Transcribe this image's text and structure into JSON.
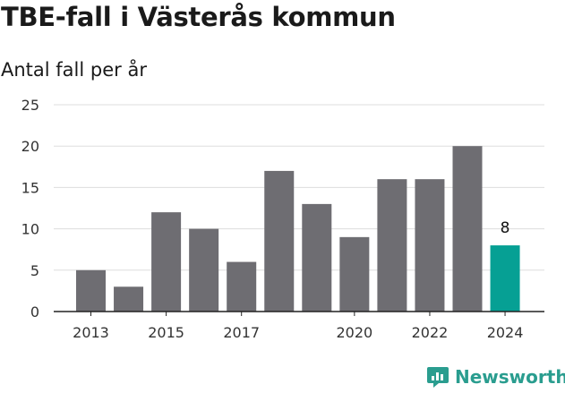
{
  "colors": {
    "bar": "#6e6d72",
    "highlight": "#06a094",
    "grid": "#dddddd",
    "axis": "#222222",
    "brand": "#2a9d8f"
  },
  "brand": {
    "name": "Newsworthy",
    "icon": "newsworthy-logo-icon"
  },
  "chart_data": {
    "type": "bar",
    "title": "TBE-fall i Västerås kommun",
    "subtitle": "Antal fall per år",
    "categories": [
      2013,
      2014,
      2015,
      2016,
      2017,
      2018,
      2019,
      2020,
      2021,
      2022,
      2023,
      2024
    ],
    "values": [
      5,
      3,
      12,
      10,
      6,
      17,
      13,
      9,
      16,
      16,
      20,
      8
    ],
    "x_tick_labels": [
      "2013",
      "2015",
      "2017",
      "2020",
      "2022",
      "2024"
    ],
    "y_ticks": [
      0,
      5,
      10,
      15,
      20,
      25
    ],
    "ylim": [
      0,
      25
    ],
    "highlighted_category": 2024,
    "data_labels": [
      {
        "category": 2024,
        "text": "8"
      }
    ],
    "grid": true,
    "xlabel": "",
    "ylabel": ""
  }
}
